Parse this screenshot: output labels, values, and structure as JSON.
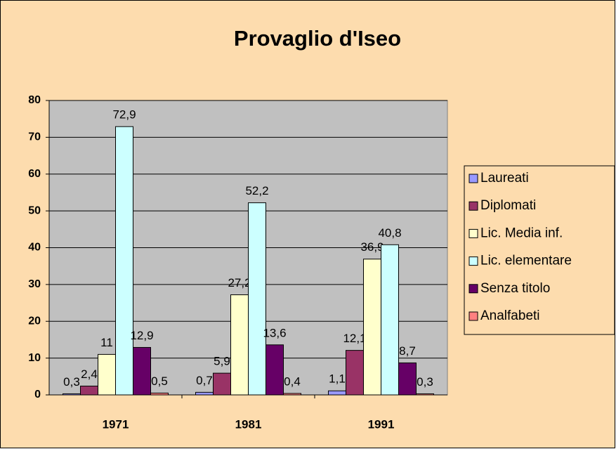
{
  "chart_data": {
    "type": "bar",
    "title": "Provaglio d'Iseo",
    "categories": [
      "1971",
      "1981",
      "1991"
    ],
    "series": [
      {
        "name": "Laureati",
        "color": "#9999ff",
        "values": [
          0.3,
          0.7,
          1.1
        ],
        "value_labels": [
          "0,3",
          "0,7",
          "1,1"
        ]
      },
      {
        "name": "Diplomati",
        "color": "#993366",
        "values": [
          2.4,
          5.9,
          12.1
        ],
        "value_labels": [
          "2,4",
          "5,9",
          "12,1"
        ]
      },
      {
        "name": "Lic. Media inf.",
        "color": "#ffffcc",
        "values": [
          11,
          27.2,
          36.9
        ],
        "value_labels": [
          "11",
          "27,2",
          "36,9"
        ]
      },
      {
        "name": "Lic. elementare",
        "color": "#ccffff",
        "values": [
          72.9,
          52.2,
          40.8
        ],
        "value_labels": [
          "72,9",
          "52,2",
          "40,8"
        ]
      },
      {
        "name": "Senza titolo",
        "color": "#660066",
        "values": [
          12.9,
          13.6,
          8.7
        ],
        "value_labels": [
          "12,9",
          "13,6",
          "8,7"
        ]
      },
      {
        "name": "Analfabeti",
        "color": "#ff8080",
        "values": [
          0.5,
          0.4,
          0.3
        ],
        "value_labels": [
          "0,5",
          "0,4",
          "0,3"
        ]
      }
    ],
    "ylim": [
      0,
      80
    ],
    "yticks": [
      0,
      10,
      20,
      30,
      40,
      50,
      60,
      70,
      80
    ],
    "grid": true,
    "legend": "right"
  }
}
